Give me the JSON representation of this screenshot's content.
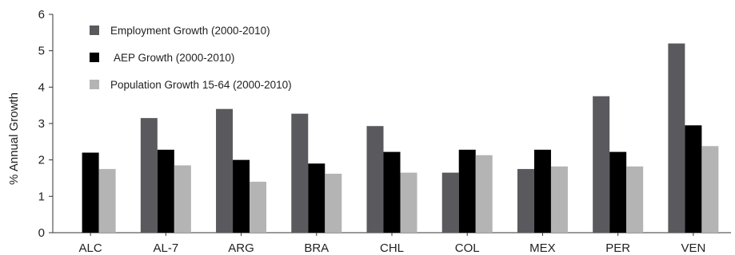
{
  "chart_data": {
    "type": "bar",
    "title": "",
    "xlabel": "",
    "ylabel": "% Annual Growth",
    "ylim": [
      0,
      6
    ],
    "yticks": [
      "0",
      "1",
      "2",
      "3",
      "4",
      "5",
      "6"
    ],
    "categories": [
      "ALC",
      "AL-7",
      "ARG",
      "BRA",
      "CHL",
      "COL",
      "MEX",
      "PER",
      "VEN"
    ],
    "series": [
      {
        "name": "Employment Growth (2000-2010)",
        "color": "#5a5a5e",
        "values": [
          null,
          3.15,
          3.4,
          3.27,
          2.93,
          1.65,
          1.75,
          3.75,
          5.2
        ]
      },
      {
        "name": "AEP Growth (2000-2010)",
        "color": "#000000",
        "values": [
          2.2,
          2.28,
          2.0,
          1.9,
          2.22,
          2.28,
          2.28,
          2.22,
          2.95
        ]
      },
      {
        "name": "Population Growth 15-64 (2000-2010)",
        "color": "#b4b4b4",
        "values": [
          1.75,
          1.85,
          1.4,
          1.62,
          1.65,
          2.13,
          1.82,
          1.82,
          2.38
        ]
      }
    ],
    "grid": false,
    "legend": "top-left"
  }
}
